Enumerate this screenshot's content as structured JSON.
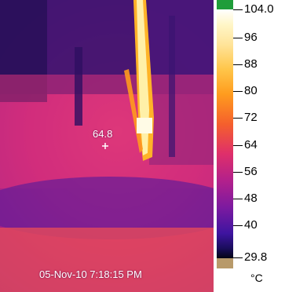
{
  "image": {
    "spot_measurement": "64.8",
    "timestamp": "05-Nov-10 7:18:15 PM"
  },
  "scale": {
    "max_label": "104.0",
    "ticks": [
      "96",
      "88",
      "80",
      "72",
      "64",
      "56",
      "48",
      "40"
    ],
    "min_label": "29.8",
    "unit": "°C",
    "top_color": "#1f9d3a",
    "bottom_color": "#b89a6a"
  }
}
